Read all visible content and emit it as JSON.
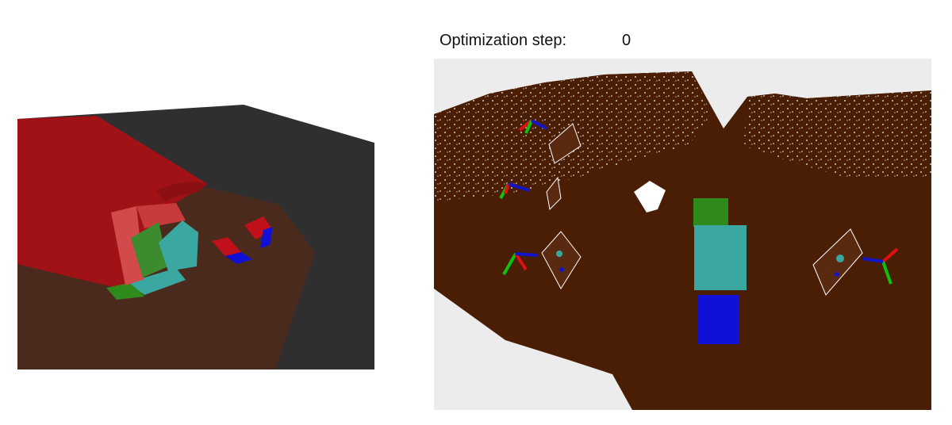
{
  "window": {
    "optimization_label": "Optimization step:",
    "optimization_value": "0"
  },
  "colors": {
    "left_floor": "#4a2a1c",
    "left_wall": "#a11216",
    "left_background": "#2f2f2f",
    "cloud": "#4a1e05",
    "viewport_background": "#ececec",
    "object_green": "#2f8a1c",
    "object_teal": "#3aa7a1",
    "object_blue": "#1010d6",
    "axis_red": "#e01010",
    "axis_green": "#10c010",
    "axis_blue": "#1414c8"
  }
}
